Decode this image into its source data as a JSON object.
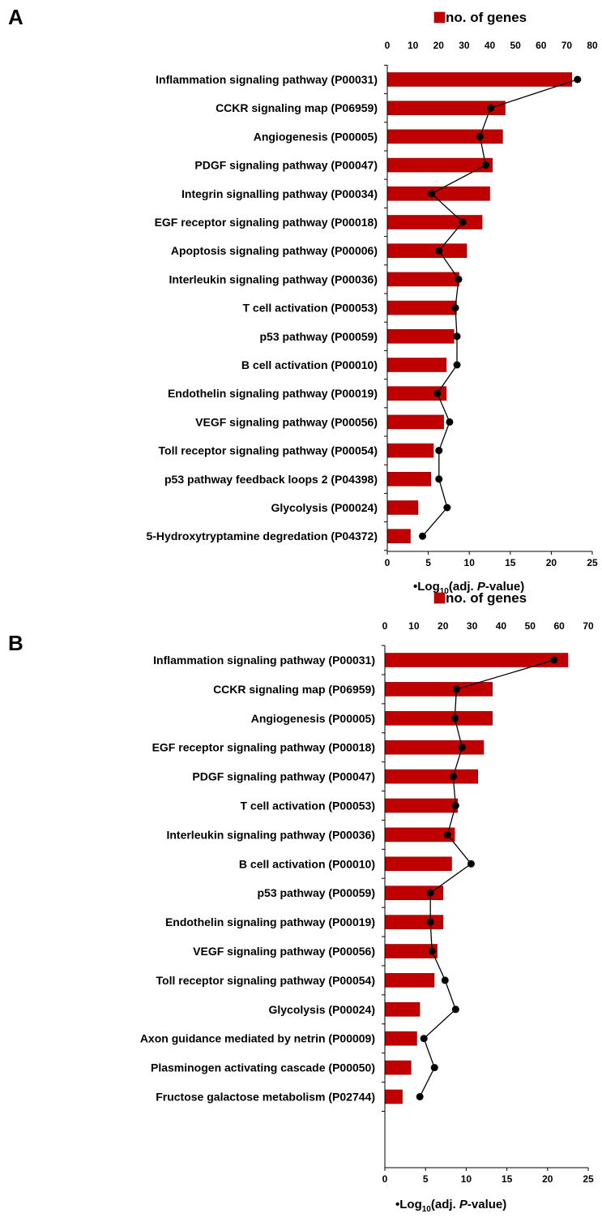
{
  "chart_data": [
    {
      "panel": "A",
      "type": "bar",
      "orientation": "horizontal",
      "categories": [
        "Inflammation signaling pathway (P00031)",
        "CCKR signaling map (P06959)",
        "Angiogenesis (P00005)",
        "PDGF signaling pathway (P00047)",
        "Integrin signalling pathway (P00034)",
        "EGF receptor signaling pathway (P00018)",
        "Apoptosis signaling pathway (P00006)",
        "Interleukin signaling pathway (P00036)",
        "T cell activation (P00053)",
        "p53 pathway (P00059)",
        "B cell activation (P00010)",
        "Endothelin signaling pathway (P00019)",
        "VEGF signaling pathway (P00056)",
        "Toll receptor signaling pathway (P00054)",
        "p53 pathway feedback loops 2 (P04398)",
        "Glycolysis (P00024)",
        "5-Hydroxytryptamine degredation (P04372)"
      ],
      "series": [
        {
          "name": "no. of genes",
          "type": "bar",
          "axis": "top",
          "values": [
            72,
            46,
            45,
            41,
            40,
            37,
            31,
            28,
            27,
            26,
            23,
            23,
            22,
            18,
            17,
            12,
            9
          ]
        },
        {
          "name": "Log10(adj. P-value)",
          "type": "line",
          "axis": "bottom",
          "values": [
            23.2,
            12.6,
            11.3,
            12.0,
            5.4,
            9.2,
            6.3,
            8.7,
            8.3,
            8.5,
            8.5,
            6.1,
            7.6,
            6.3,
            6.3,
            7.3,
            4.3
          ]
        }
      ],
      "top_axis": {
        "range": [
          0,
          80
        ],
        "ticks": [
          "0",
          "10",
          "20",
          "30",
          "40",
          "50",
          "60",
          "70",
          "80"
        ]
      },
      "bottom_axis": {
        "range": [
          0,
          25
        ],
        "ticks": [
          "0",
          "5",
          "10",
          "15",
          "20",
          "25"
        ]
      },
      "legend_bar": "no. of genes",
      "legend_line": "•Log",
      "legend_line_sub": "10",
      "legend_line_mid": "(adj. ",
      "legend_line_italic": "P",
      "legend_line_end": "-value)",
      "colors": {
        "bar": "#c00000",
        "bar_edge": "#8b0000",
        "line": "#000000",
        "marker": "#000000"
      }
    },
    {
      "panel": "B",
      "type": "bar",
      "orientation": "horizontal",
      "categories": [
        "Inflammation signaling pathway (P00031)",
        "CCKR signaling map (P06959)",
        "Angiogenesis (P00005)",
        "EGF receptor signaling pathway (P00018)",
        "PDGF signaling pathway (P00047)",
        "T cell activation (P00053)",
        "Interleukin signaling pathway (P00036)",
        "B cell activation (P00010)",
        "p53 pathway (P00059)",
        "Endothelin signaling pathway (P00019)",
        "VEGF signaling pathway (P00056)",
        "Toll receptor signaling pathway (P00054)",
        "Glycolysis (P00024)",
        "Axon guidance mediated by netrin (P00009)",
        "Plasminogen activating cascade (P00050)",
        "Fructose galactose metabolism (P02744)"
      ],
      "series": [
        {
          "name": "no. of genes",
          "type": "bar",
          "axis": "top",
          "values": [
            63,
            37,
            37,
            34,
            32,
            25,
            24,
            23,
            20,
            20,
            18,
            17,
            12,
            11,
            9,
            6
          ]
        },
        {
          "name": "Log10(adj. P-value)",
          "type": "line",
          "axis": "bottom",
          "values": [
            20.8,
            8.8,
            8.6,
            9.5,
            8.4,
            8.7,
            7.7,
            10.6,
            5.6,
            5.6,
            5.8,
            7.4,
            8.7,
            4.8,
            6.1,
            4.3
          ]
        }
      ],
      "top_axis": {
        "range": [
          0,
          70
        ],
        "ticks": [
          "0",
          "10",
          "20",
          "30",
          "40",
          "50",
          "60",
          "70"
        ]
      },
      "bottom_axis": {
        "range": [
          0,
          25
        ],
        "ticks": [
          "0",
          "5",
          "10",
          "15",
          "20",
          "25"
        ]
      },
      "legend_bar": "no. of genes",
      "legend_line": "•Log",
      "legend_line_sub": "10",
      "legend_line_mid": "(adj. ",
      "legend_line_italic": "P",
      "legend_line_end": "-value)",
      "colors": {
        "bar": "#c00000",
        "bar_edge": "#8b0000",
        "line": "#000000",
        "marker": "#000000"
      }
    }
  ]
}
